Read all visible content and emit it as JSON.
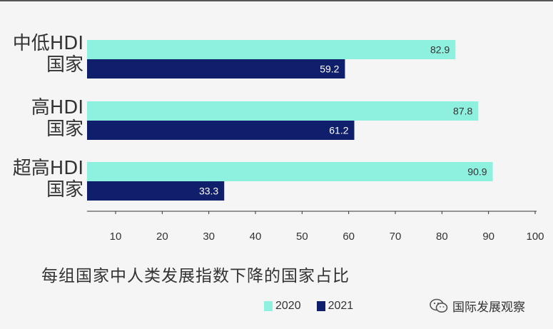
{
  "chart_data": {
    "type": "bar",
    "orientation": "horizontal",
    "categories": [
      {
        "line1": "中低HDI",
        "line2": "国家"
      },
      {
        "line1": "高HDI",
        "line2": "国家"
      },
      {
        "line1": "超高HDI",
        "line2": "国家"
      }
    ],
    "series": [
      {
        "name": "2020",
        "values": [
          82.9,
          87.8,
          90.9
        ],
        "color": "#8ef0df"
      },
      {
        "name": "2021",
        "values": [
          59.2,
          61.2,
          33.3
        ],
        "color": "#0f1f6b"
      }
    ],
    "xticks": [
      10,
      20,
      30,
      40,
      50,
      60,
      70,
      80,
      90,
      100
    ],
    "xlim": [
      5,
      100
    ],
    "subtitle": "每组国家中人类发展指数下降的国家占比",
    "legend_position": "bottom-center"
  },
  "watermark": {
    "text": "国际发展观察",
    "icon": "wechat-icon"
  }
}
